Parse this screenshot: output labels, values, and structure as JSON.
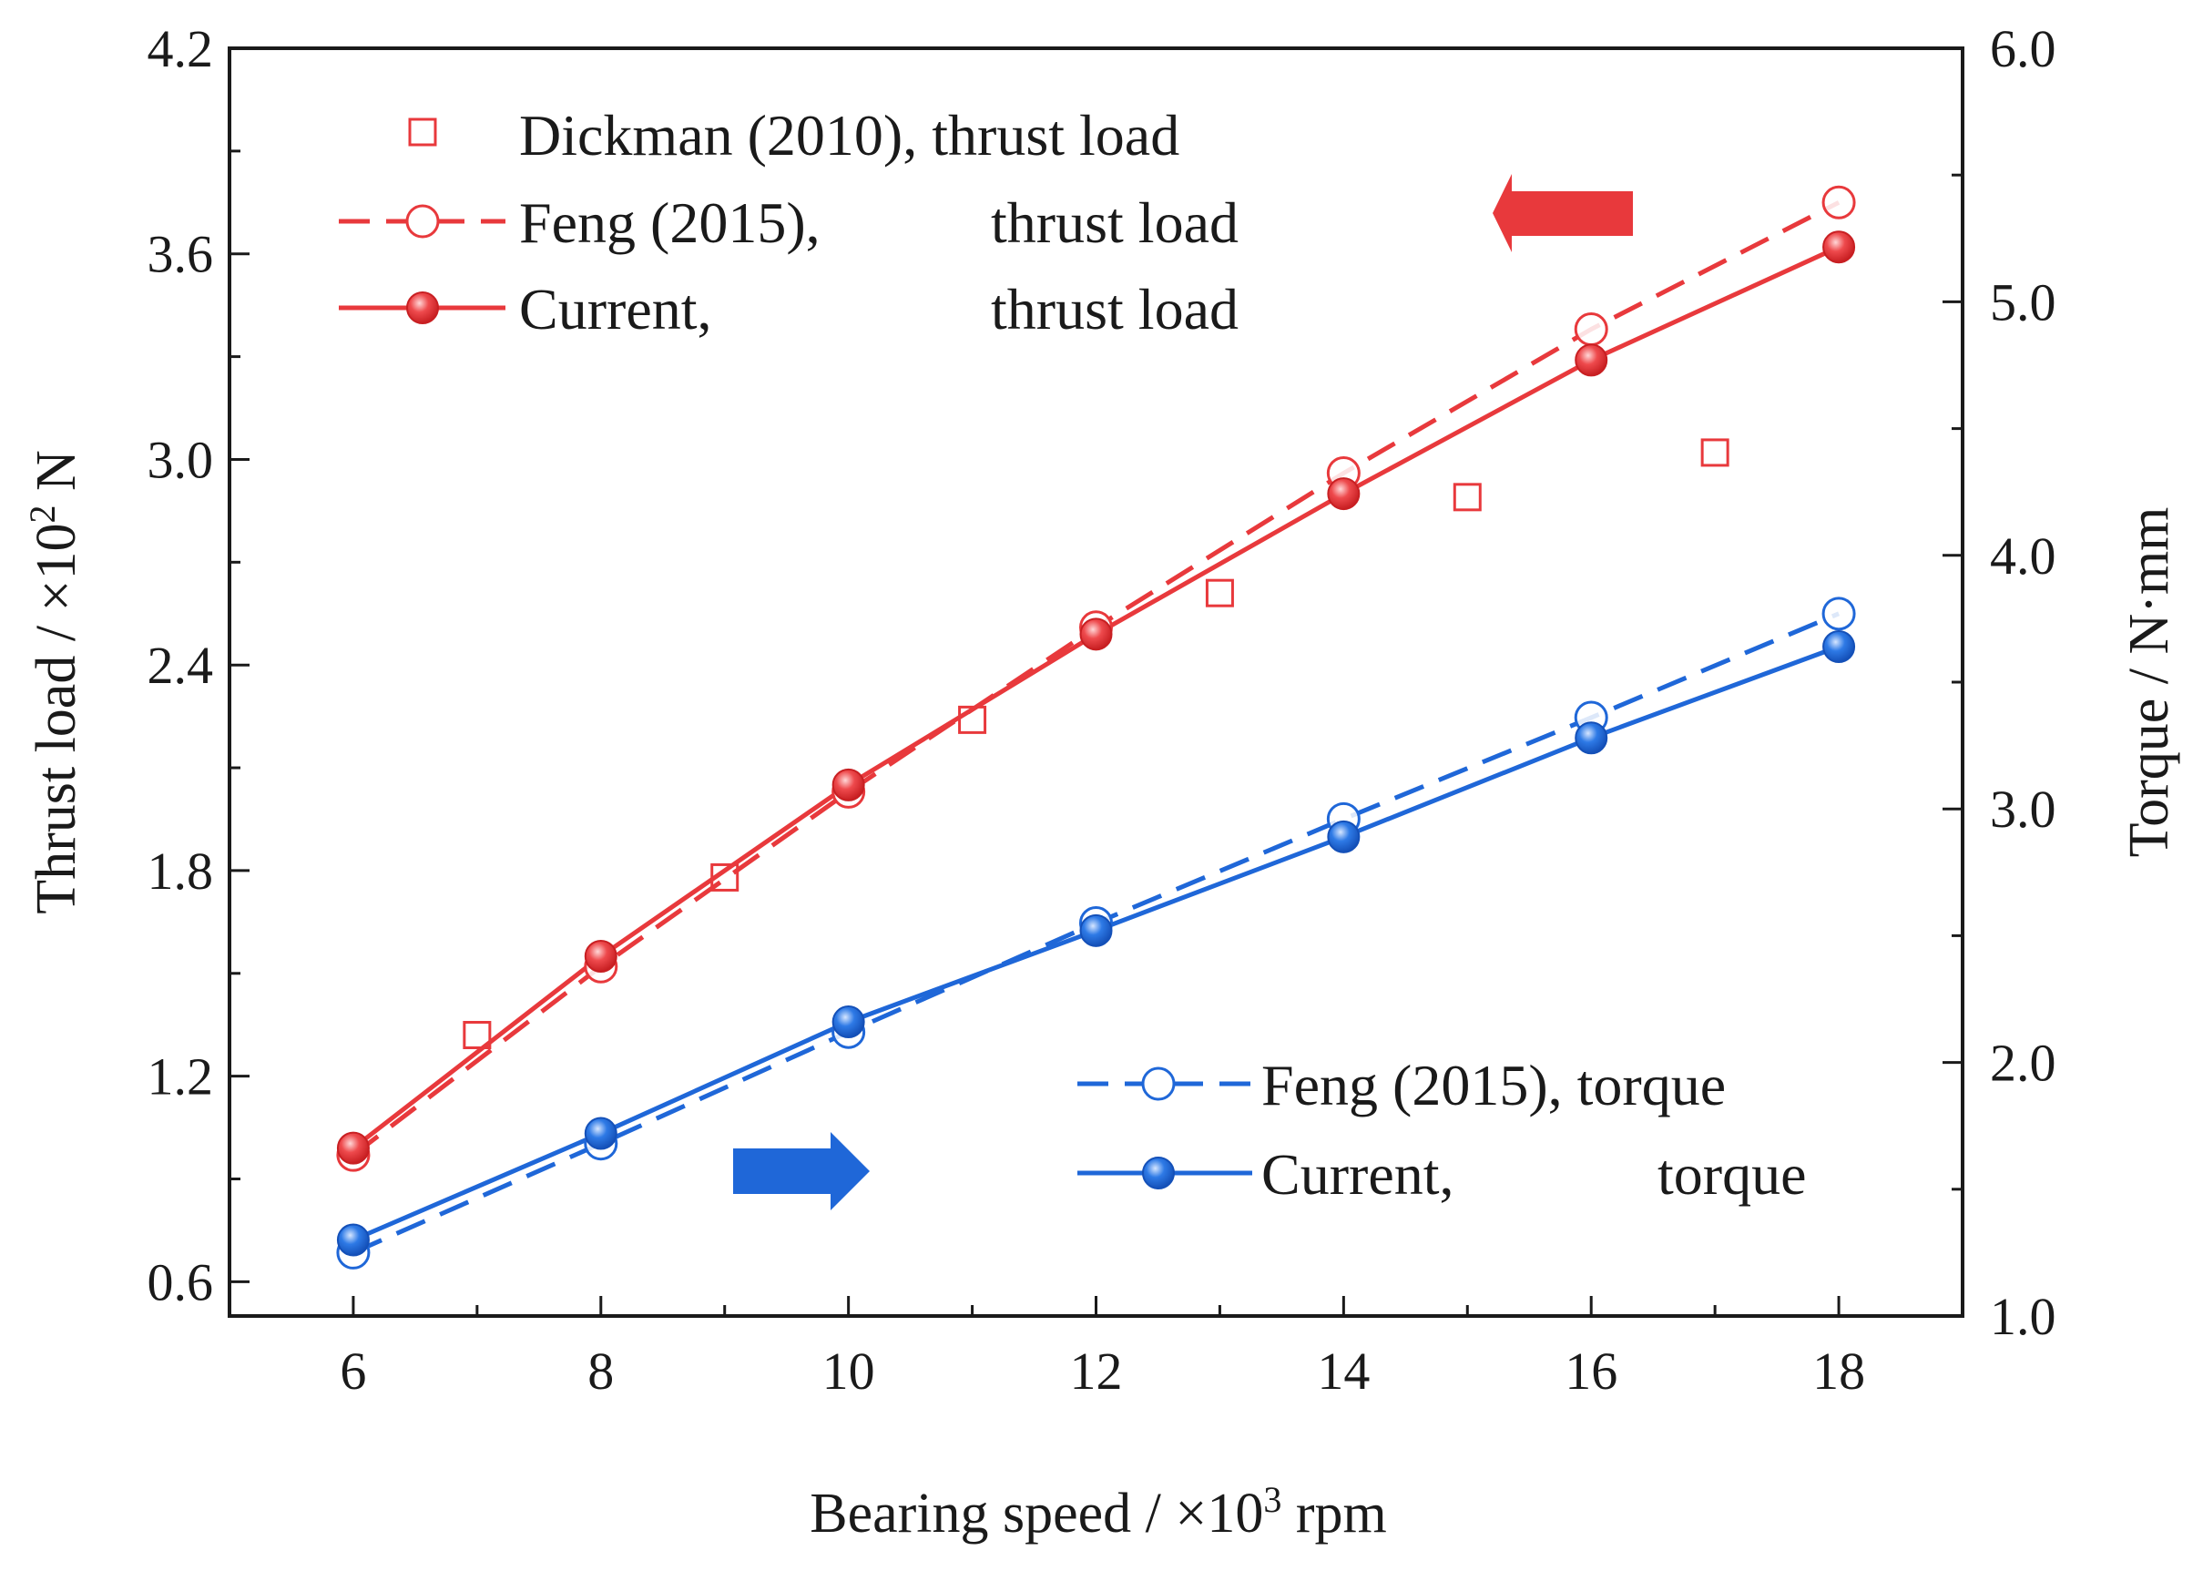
{
  "colors": {
    "thrust": "#e8393c",
    "torque": "#1f67d8",
    "axis": "#1a1a1a"
  },
  "chart_data": {
    "type": "line",
    "x": {
      "label": "Bearing speed / ×10",
      "label_sup": "3",
      "label_tail": " rpm",
      "range": [
        5,
        19
      ],
      "ticks": [
        6,
        8,
        10,
        12,
        14,
        16,
        18
      ],
      "tick_labels": [
        "6",
        "8",
        "10",
        "12",
        "14",
        "16",
        "18"
      ]
    },
    "y_left": {
      "label": "Thrust load / ×10",
      "label_sup": "2",
      "label_tail": " N",
      "range": [
        0.5,
        4.2
      ],
      "ticks": [
        0.6,
        1.2,
        1.8,
        2.4,
        3.0,
        3.6,
        4.2
      ],
      "tick_labels": [
        "0.6",
        "1.2",
        "1.8",
        "2.4",
        "3.0",
        "3.6",
        "4.2"
      ]
    },
    "y_right": {
      "label": "Torque / N·mm",
      "range": [
        1.0,
        6.0
      ],
      "ticks": [
        1.0,
        2.0,
        3.0,
        4.0,
        5.0,
        6.0
      ],
      "tick_labels": [
        "1.0",
        "2.0",
        "3.0",
        "4.0",
        "5.0",
        "6.0"
      ]
    },
    "series": [
      {
        "name": "Dickman (2010), thrust load",
        "axis": "left",
        "style": "squares-only",
        "color": "#e8393c",
        "x": [
          7,
          9,
          11,
          13,
          15,
          17
        ],
        "y": [
          1.32,
          1.78,
          2.24,
          2.61,
          2.89,
          3.02
        ]
      },
      {
        "name": "Feng (2015), thrust load",
        "axis": "left",
        "style": "dashed-open-circle",
        "color": "#e8393c",
        "x": [
          6,
          8,
          10,
          12,
          14,
          16,
          18
        ],
        "y": [
          0.97,
          1.52,
          2.03,
          2.51,
          2.96,
          3.38,
          3.75
        ]
      },
      {
        "name": "Current, thrust load",
        "axis": "left",
        "style": "solid-filled-circle",
        "color": "#e8393c",
        "x": [
          6,
          8,
          10,
          12,
          14,
          16,
          18
        ],
        "y": [
          0.99,
          1.55,
          2.05,
          2.49,
          2.9,
          3.29,
          3.62
        ]
      },
      {
        "name": "Feng (2015), torque",
        "axis": "right",
        "style": "dashed-open-circle",
        "color": "#1f67d8",
        "x": [
          6,
          8,
          10,
          12,
          14,
          16,
          18
        ],
        "y": [
          1.25,
          1.68,
          2.12,
          2.55,
          2.96,
          3.36,
          3.77
        ]
      },
      {
        "name": "Current, torque",
        "axis": "right",
        "style": "solid-filled-circle",
        "color": "#1f67d8",
        "x": [
          6,
          8,
          10,
          12,
          14,
          16,
          18
        ],
        "y": [
          1.3,
          1.72,
          2.16,
          2.52,
          2.89,
          3.28,
          3.64
        ]
      }
    ],
    "legend_thrust": [
      {
        "left": "Dickman (2010), thrust load",
        "right": ""
      },
      {
        "left": "Feng (2015),",
        "right": "thrust load"
      },
      {
        "left": "Current,",
        "right": "thrust load"
      }
    ],
    "legend_torque": [
      {
        "left": "Feng (2015), torque",
        "right": ""
      },
      {
        "left": "Current,",
        "right": "torque"
      }
    ],
    "annotations": [
      {
        "type": "arrow",
        "direction": "left",
        "meaning": "thrust curves use left axis",
        "color": "#e8393c"
      },
      {
        "type": "arrow",
        "direction": "right",
        "meaning": "torque curves use right axis",
        "color": "#1f67d8"
      }
    ]
  }
}
